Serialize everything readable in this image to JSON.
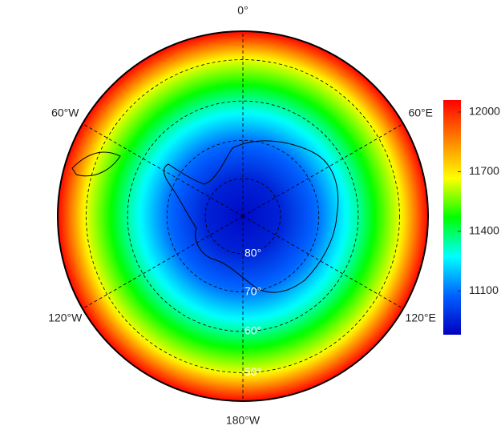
{
  "map": {
    "projection": "south-polar-stereographic",
    "meridians": [
      {
        "value": 0,
        "label": "0°"
      },
      {
        "value": 60,
        "label": "60°E"
      },
      {
        "value": 120,
        "label": "120°E"
      },
      {
        "value": 180,
        "label": "180°W"
      },
      {
        "value": -120,
        "label": "120°W"
      },
      {
        "value": -60,
        "label": "60°W"
      }
    ],
    "parallels": [
      {
        "value": -80,
        "label": "80°"
      },
      {
        "value": -70,
        "label": "70°"
      },
      {
        "value": -60,
        "label": "60°"
      },
      {
        "value": -50,
        "label": "50°"
      }
    ],
    "field": {
      "lat": [
        -90,
        -80,
        -70,
        -60,
        -50,
        -43.5
      ],
      "values": [
        10900,
        10950,
        11100,
        11350,
        11650,
        12050
      ]
    }
  },
  "colorbar": {
    "lim": [
      10880,
      12060
    ],
    "ticks": [
      11100,
      11400,
      11700,
      12000
    ],
    "colors": [
      "#0000c0",
      "#0060ff",
      "#00ffff",
      "#00ff00",
      "#ffff00",
      "#ff8000",
      "#ff0000"
    ]
  }
}
